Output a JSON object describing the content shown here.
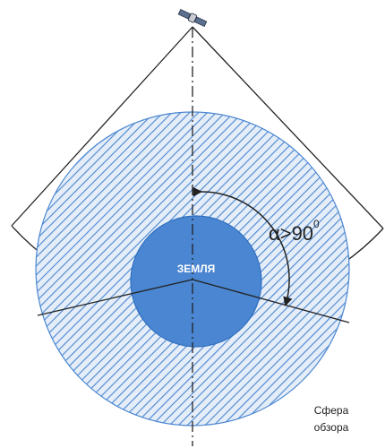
{
  "earth_label": "ЗЕМЛЯ",
  "angle_label": "α>90",
  "angle_superscript": "0",
  "sphere_label_line1": "Сфера",
  "sphere_label_line2": "обзора",
  "colors": {
    "earth_fill": "#4a86d1",
    "earth_stroke": "#2f6fbf",
    "hatch": "#4a86d1",
    "hatch_bg": "#e4edf8",
    "line": "#222222",
    "earth_text": "#ffffff"
  },
  "icons": {
    "satellite": "satellite-icon"
  }
}
